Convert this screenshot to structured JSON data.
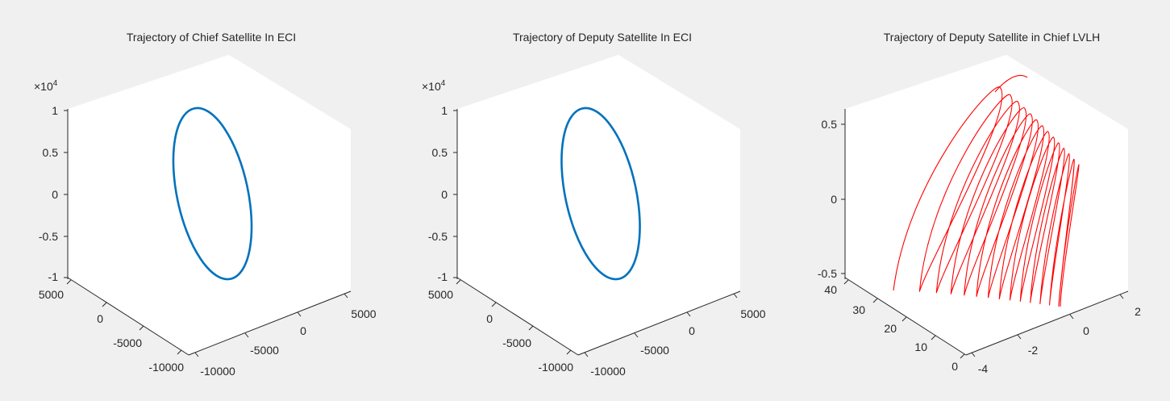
{
  "figure": {
    "background": "#f0f0f0",
    "axes_background": "#ffffff",
    "axis_line_color": "#262626"
  },
  "charts": [
    {
      "title": "Trajectory of Chief Satellite In ECI",
      "z_multiplier": {
        "base": "×10",
        "exponent": "4"
      },
      "z_ticks": [
        "1",
        "0.5",
        "0",
        "-0.5",
        "-1"
      ],
      "left_ticks": [
        "5000",
        "0",
        "-5000",
        "-10000"
      ],
      "right_ticks": [
        "-10000",
        "-5000",
        "0",
        "5000"
      ]
    },
    {
      "title": "Trajectory of Deputy Satellite In ECI",
      "z_multiplier": {
        "base": "×10",
        "exponent": "4"
      },
      "z_ticks": [
        "1",
        "0.5",
        "0",
        "-0.5",
        "-1"
      ],
      "left_ticks": [
        "5000",
        "0",
        "-5000",
        "-10000"
      ],
      "right_ticks": [
        "-10000",
        "-5000",
        "0",
        "5000"
      ]
    },
    {
      "title": "Trajectory of Deputy Satellite in Chief LVLH",
      "z_multiplier": {
        "base": "",
        "exponent": ""
      },
      "z_ticks": [
        "0.5",
        "0",
        "-0.5"
      ],
      "left_ticks": [
        "40",
        "30",
        "20",
        "10",
        "0"
      ],
      "right_ticks": [
        "-4",
        "-2",
        "0",
        "2"
      ]
    }
  ],
  "chart_data": [
    {
      "type": "line3d",
      "title": "Trajectory of Chief Satellite In ECI",
      "series": [
        {
          "color": "#0072bd",
          "shape": "closed ellipse",
          "z_range": [
            -10000,
            10000
          ]
        }
      ],
      "zlim": [
        -10000,
        10000
      ],
      "xlim": [
        -10000,
        5000
      ],
      "ylim": [
        -10000,
        5000
      ],
      "grid": false
    },
    {
      "type": "line3d",
      "title": "Trajectory of Deputy Satellite In ECI",
      "series": [
        {
          "color": "#0072bd",
          "shape": "closed ellipse",
          "z_range": [
            -10000,
            10000
          ]
        }
      ],
      "zlim": [
        -10000,
        10000
      ],
      "xlim": [
        -10000,
        5000
      ],
      "ylim": [
        -10000,
        5000
      ],
      "grid": false
    },
    {
      "type": "line3d",
      "title": "Trajectory of Deputy Satellite in Chief LVLH",
      "series": [
        {
          "color": "#ff0000",
          "shape": "spiral of loops",
          "loops": 14,
          "z_range": [
            -0.5,
            0.7
          ]
        }
      ],
      "zlim": [
        -0.5,
        0.7
      ],
      "xlim": [
        -4,
        2
      ],
      "ylim": [
        0,
        40
      ],
      "grid": false
    }
  ]
}
